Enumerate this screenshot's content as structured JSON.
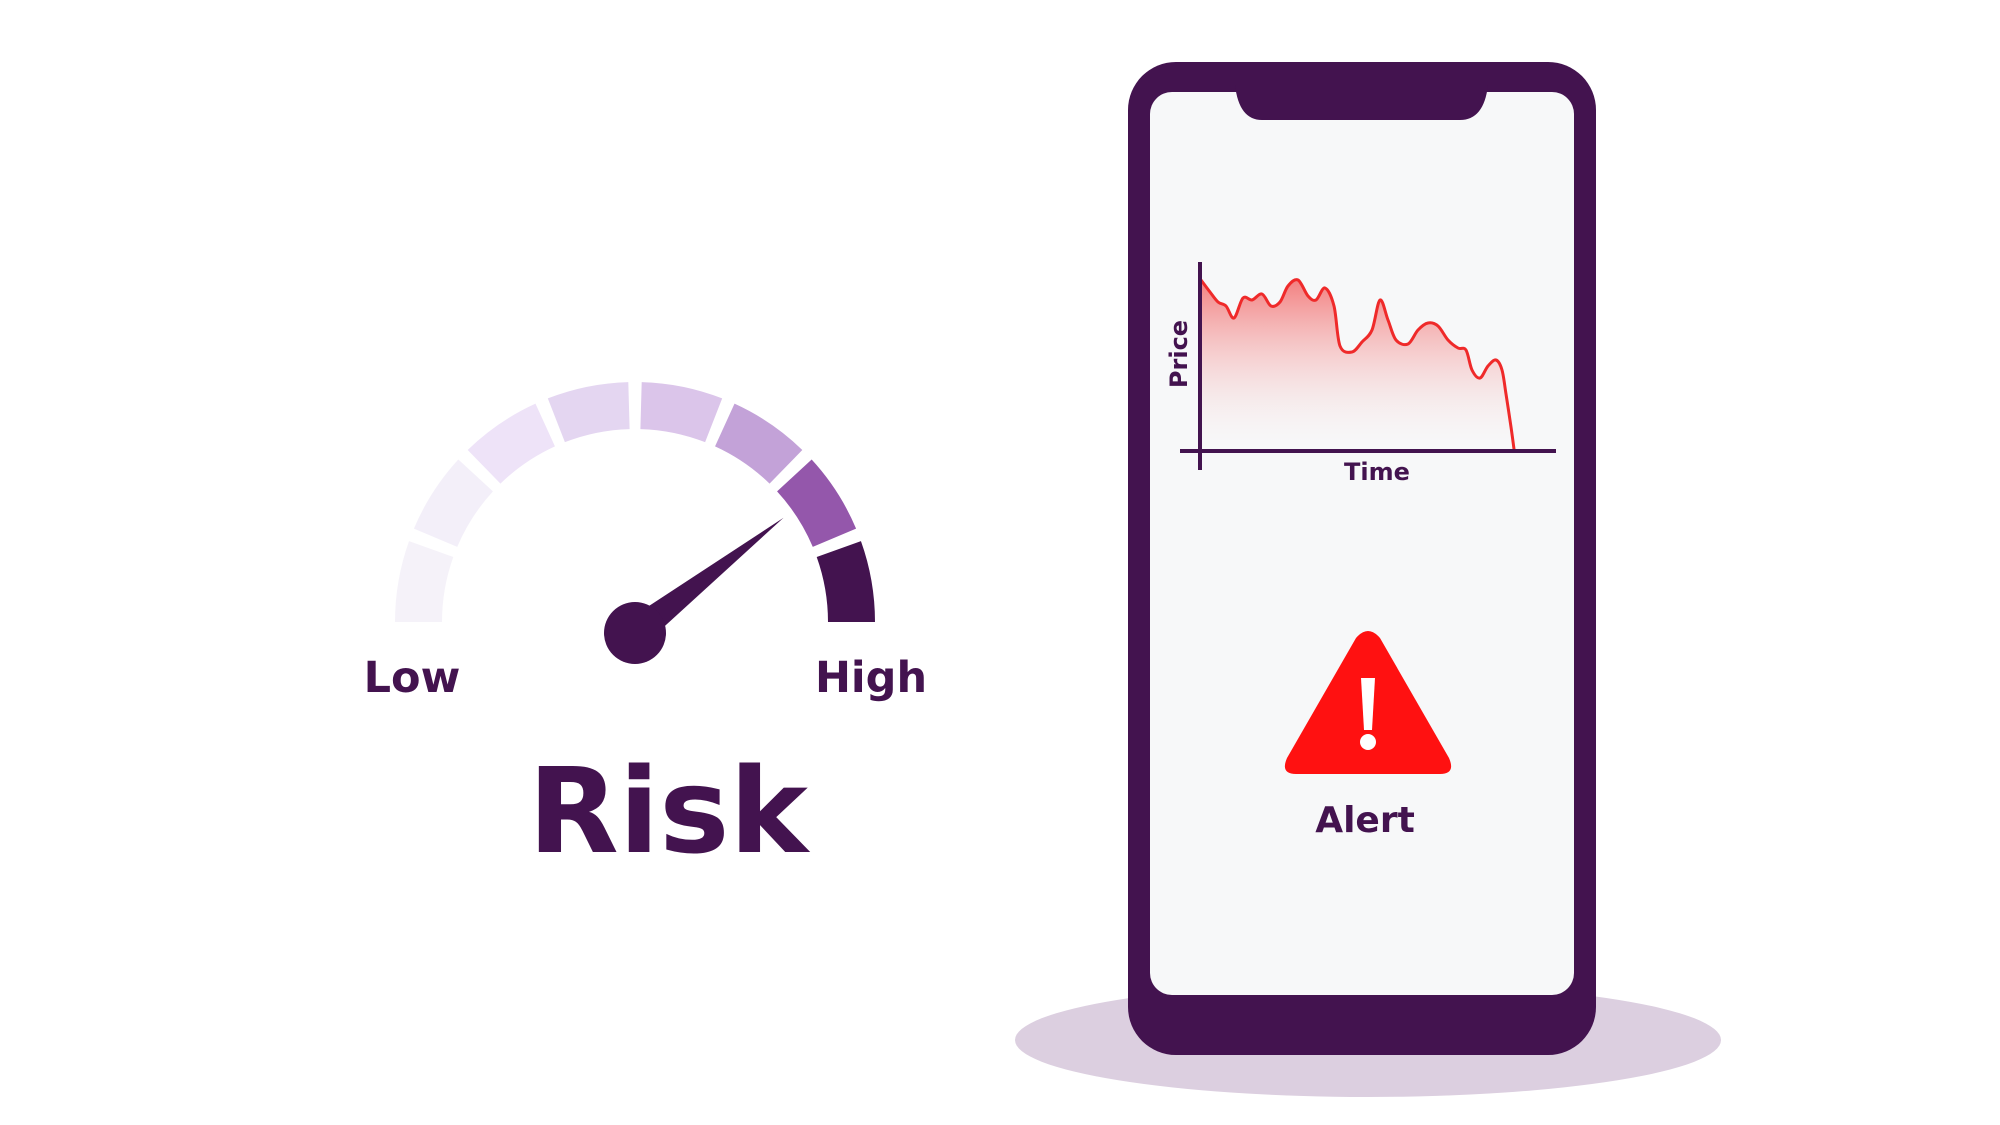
{
  "gauge": {
    "low_label": "Low",
    "high_label": "High",
    "title": "Risk",
    "level": 0.79,
    "segment_colors": [
      "#f5f2f9",
      "#f3eff9",
      "#eee3f8",
      "#e4d6f1",
      "#dbc5ea",
      "#c3a2d8",
      "#9457ab",
      "#43134f"
    ]
  },
  "phone": {
    "chart": {
      "ylabel": "Price",
      "xlabel": "Time"
    },
    "alert_label": "Alert"
  },
  "colors": {
    "brand": "#43134f",
    "alert": "#ff1111",
    "screen": "#f7f8f9",
    "shadow": "#dccfe0",
    "line": "#ef2a2a"
  },
  "icons": [
    "warning-triangle-icon"
  ]
}
